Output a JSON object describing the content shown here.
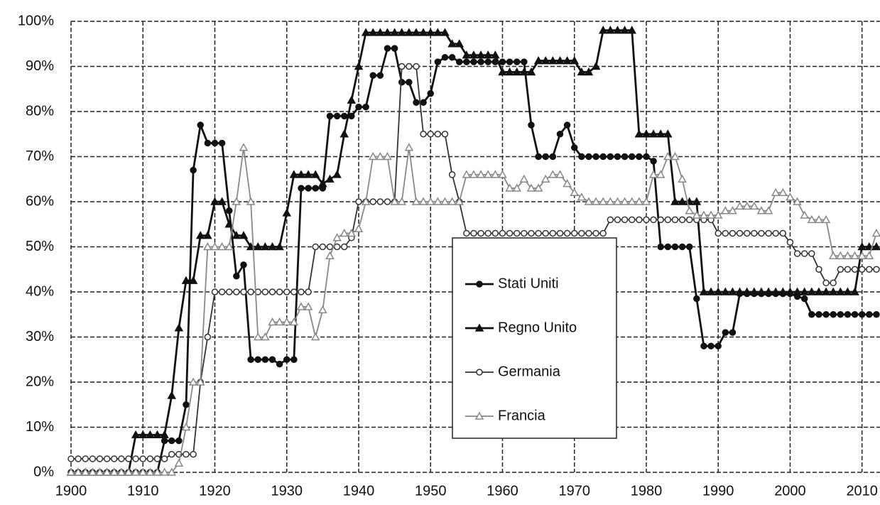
{
  "chart_data": {
    "type": "line",
    "x": [
      1900,
      1901,
      1902,
      1903,
      1904,
      1905,
      1906,
      1907,
      1908,
      1909,
      1910,
      1911,
      1912,
      1913,
      1914,
      1915,
      1916,
      1917,
      1918,
      1919,
      1920,
      1921,
      1922,
      1923,
      1924,
      1925,
      1926,
      1927,
      1928,
      1929,
      1930,
      1931,
      1932,
      1933,
      1934,
      1935,
      1936,
      1937,
      1938,
      1939,
      1940,
      1941,
      1942,
      1943,
      1944,
      1945,
      1946,
      1947,
      1948,
      1949,
      1950,
      1951,
      1952,
      1953,
      1954,
      1955,
      1956,
      1957,
      1958,
      1959,
      1960,
      1961,
      1962,
      1963,
      1964,
      1965,
      1966,
      1967,
      1968,
      1969,
      1970,
      1971,
      1972,
      1973,
      1974,
      1975,
      1976,
      1977,
      1978,
      1979,
      1980,
      1981,
      1982,
      1983,
      1984,
      1985,
      1986,
      1987,
      1988,
      1989,
      1990,
      1991,
      1992,
      1993,
      1994,
      1995,
      1996,
      1997,
      1998,
      1999,
      2000,
      2001,
      2002,
      2003,
      2004,
      2005,
      2006,
      2007,
      2008,
      2009,
      2010,
      2011,
      2012
    ],
    "series": [
      {
        "name": "Stati Uniti",
        "color": "#111111",
        "marker": "circle",
        "marker_fill": "#111111",
        "values": [
          0,
          0,
          0,
          0,
          0,
          0,
          0,
          0,
          0,
          0,
          0,
          0,
          0,
          7,
          7,
          7,
          15,
          67,
          77,
          73,
          73,
          73,
          58,
          43.5,
          46,
          25,
          25,
          25,
          25,
          24,
          25,
          25,
          63,
          63,
          63,
          63,
          79,
          79,
          79,
          79,
          81,
          81,
          88,
          88,
          94,
          94,
          86.5,
          86.5,
          82,
          82,
          84,
          91,
          92,
          92,
          91,
          91,
          91,
          91,
          91,
          91,
          91,
          91,
          91,
          91,
          77,
          70,
          70,
          70,
          75,
          77,
          72,
          70,
          70,
          70,
          70,
          70,
          70,
          70,
          70,
          70,
          70,
          69,
          50,
          50,
          50,
          50,
          50,
          38.5,
          28,
          28,
          28,
          31,
          31,
          39.6,
          39.6,
          39.6,
          39.6,
          39.6,
          39.6,
          39.6,
          39.6,
          39,
          38.5,
          35,
          35,
          35,
          35,
          35,
          35,
          35,
          35,
          35,
          35
        ]
      },
      {
        "name": "Regno Unito",
        "color": "#111111",
        "marker": "triangle",
        "marker_fill": "#111111",
        "values": [
          0,
          0,
          0,
          0,
          0,
          0,
          0,
          0,
          0,
          8.3,
          8.3,
          8.3,
          8.3,
          8.3,
          17,
          32,
          42.5,
          42.5,
          52.5,
          52.5,
          60,
          60,
          55,
          52.5,
          52.5,
          50,
          50,
          50,
          50,
          50,
          57.5,
          66,
          66,
          66,
          66,
          64,
          65,
          66,
          75,
          82.5,
          90,
          97.5,
          97.5,
          97.5,
          97.5,
          97.5,
          97.5,
          97.5,
          97.5,
          97.5,
          97.5,
          97.5,
          97.5,
          95,
          95,
          92.5,
          92.5,
          92.5,
          92.5,
          92.5,
          88.75,
          88.75,
          88.75,
          88.75,
          88.75,
          91.25,
          91.25,
          91.25,
          91.25,
          91.25,
          91.25,
          88.75,
          88.75,
          90,
          98,
          98,
          98,
          98,
          98,
          75,
          75,
          75,
          75,
          75,
          60,
          60,
          60,
          60,
          40,
          40,
          40,
          40,
          40,
          40,
          40,
          40,
          40,
          40,
          40,
          40,
          40,
          40,
          40,
          40,
          40,
          40,
          40,
          40,
          40,
          40,
          50,
          50,
          50
        ]
      },
      {
        "name": "Germania",
        "color": "#333333",
        "marker": "circle",
        "marker_fill": "#ffffff",
        "values": [
          3,
          3,
          3,
          3,
          3,
          3,
          3,
          3,
          3,
          3,
          3,
          3,
          3,
          3,
          4,
          4,
          4,
          4,
          20,
          30,
          40,
          40,
          40,
          40,
          40,
          40,
          40,
          40,
          40,
          40,
          40,
          40,
          40,
          40,
          50,
          50,
          50,
          50,
          50,
          52,
          60,
          60,
          60,
          60,
          60,
          60,
          90,
          90,
          90,
          75,
          75,
          75,
          75,
          66,
          60,
          53,
          53,
          53,
          53,
          53,
          53,
          53,
          53,
          53,
          53,
          53,
          53,
          53,
          53,
          53,
          53,
          53,
          53,
          53,
          53,
          56,
          56,
          56,
          56,
          56,
          56,
          56,
          56,
          56,
          56,
          56,
          56,
          56,
          56,
          56,
          53,
          53,
          53,
          53,
          53,
          53,
          53,
          53,
          53,
          53,
          51,
          48.5,
          48.5,
          48.5,
          45,
          42,
          42,
          45,
          45,
          45,
          45,
          45,
          45
        ]
      },
      {
        "name": "Francia",
        "color": "#888888",
        "marker": "triangle",
        "marker_fill": "#ffffff",
        "values": [
          0,
          0,
          0,
          0,
          0,
          0,
          0,
          0,
          0,
          0,
          0,
          0,
          0,
          0,
          0,
          2,
          10,
          20,
          20,
          50,
          50,
          50,
          50,
          60,
          72,
          60,
          30,
          30,
          33.3,
          33.3,
          33.3,
          33.3,
          36.7,
          36.7,
          30,
          36,
          48,
          52,
          53,
          53,
          54,
          60,
          70,
          70,
          70,
          60,
          60,
          72,
          60,
          60,
          60,
          60,
          60,
          60,
          60,
          66,
          66,
          66,
          66,
          66,
          66,
          63,
          63,
          65,
          63,
          63,
          65,
          66,
          66,
          64,
          62,
          61,
          60,
          60,
          60,
          60,
          60,
          60,
          60,
          60,
          60,
          66,
          66,
          70,
          70,
          65,
          58,
          57,
          57,
          57,
          57,
          58,
          58,
          59,
          59,
          59,
          58,
          58,
          62,
          62,
          61,
          60,
          57,
          56,
          56,
          56,
          48,
          48,
          48,
          48,
          48,
          48,
          53
        ]
      }
    ],
    "xlim": [
      1900,
      2012.5
    ],
    "ylim": [
      0,
      100
    ],
    "xticks": [
      1900,
      1910,
      1920,
      1930,
      1940,
      1950,
      1960,
      1970,
      1980,
      1990,
      2000,
      2010
    ],
    "yticks": [
      {
        "value": 0,
        "label": "0%"
      },
      {
        "value": 10,
        "label": "10%"
      },
      {
        "value": 20,
        "label": "20%"
      },
      {
        "value": 30,
        "label": "30%"
      },
      {
        "value": 40,
        "label": "40%"
      },
      {
        "value": 50,
        "label": "50%"
      },
      {
        "value": 60,
        "label": "60%"
      },
      {
        "value": 70,
        "label": "70%"
      },
      {
        "value": 80,
        "label": "80%"
      },
      {
        "value": 90,
        "label": "90%"
      },
      {
        "value": 100,
        "label": "100%"
      }
    ],
    "grid": true,
    "legend": "center"
  }
}
